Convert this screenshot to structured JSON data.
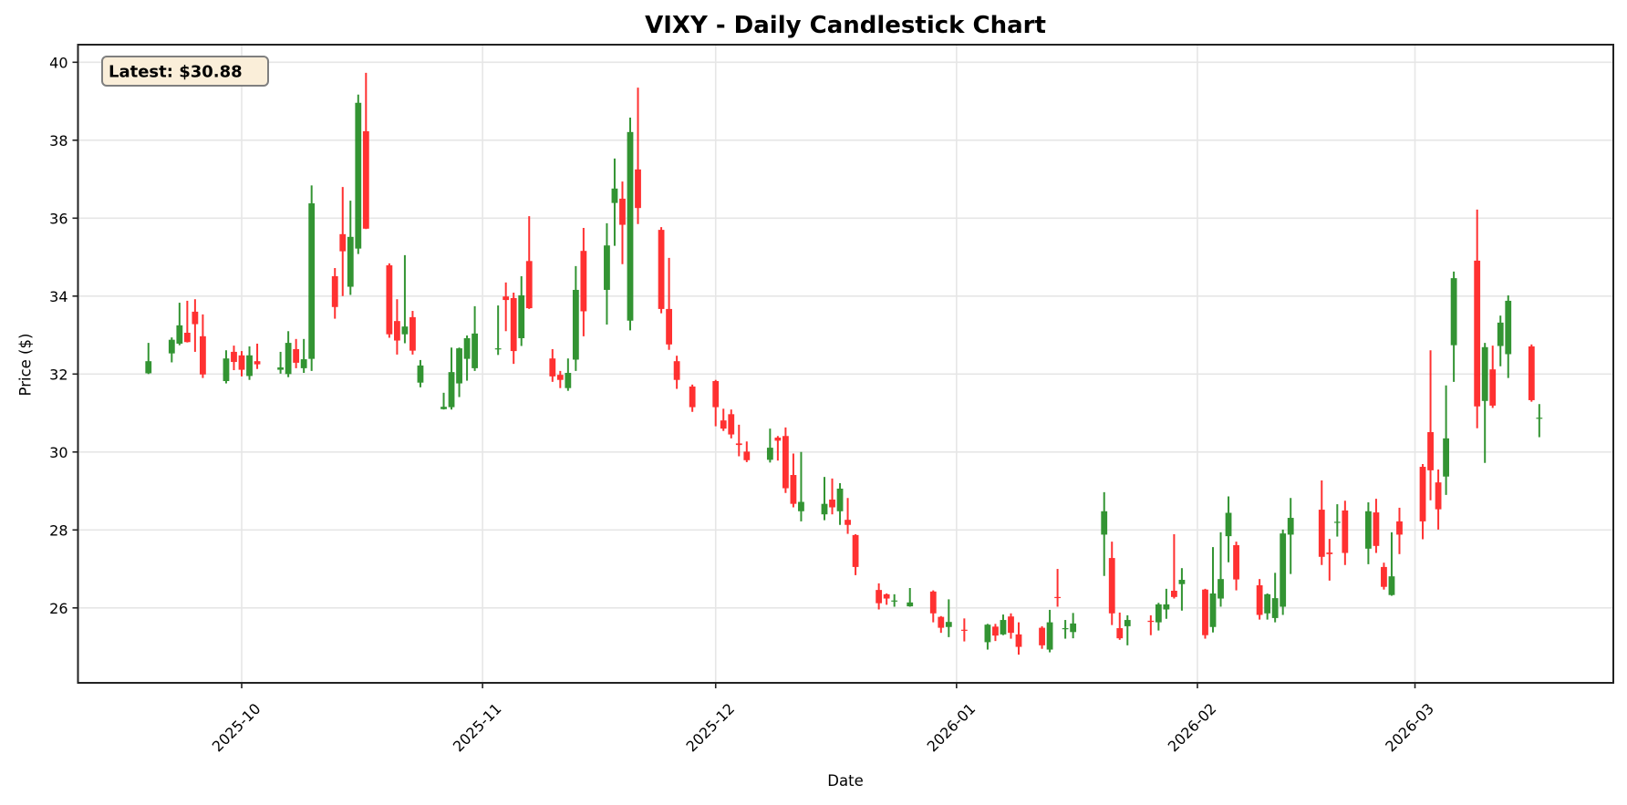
{
  "chart_data": {
    "type": "candlestick",
    "title": "VIXY - Daily Candlestick Chart",
    "xlabel": "Date",
    "ylabel": "Price ($)",
    "ylim": [
      24.08,
      40.45
    ],
    "xlim": [
      "2025-09-16",
      "2026-03-26"
    ],
    "yticks": [
      26,
      28,
      30,
      32,
      34,
      36,
      38,
      40
    ],
    "xticks": [
      {
        "date": "2025-10-01",
        "label": "2025-10"
      },
      {
        "date": "2025-11-01",
        "label": "2025-11"
      },
      {
        "date": "2025-12-01",
        "label": "2025-12"
      },
      {
        "date": "2026-01-01",
        "label": "2026-01"
      },
      {
        "date": "2026-02-01",
        "label": "2026-02"
      },
      {
        "date": "2026-03-01",
        "label": "2026-03"
      }
    ],
    "grid": true,
    "annotation": {
      "label": "Latest: $30.88",
      "value": 30.88
    },
    "colors": {
      "up": "#228B22",
      "down": "#FF2020",
      "grid": "#e6e6e6",
      "axis": "#222222",
      "annotation_bg": "#FAEED9",
      "annotation_border": "#7f7f7f"
    },
    "columns": [
      "date",
      "open",
      "high",
      "low",
      "close"
    ],
    "candles": [
      [
        "2025-09-19",
        32.02,
        32.8,
        32.0,
        32.33
      ],
      [
        "2025-09-22",
        32.53,
        32.94,
        32.3,
        32.88
      ],
      [
        "2025-09-23",
        32.78,
        33.83,
        32.74,
        33.25
      ],
      [
        "2025-09-24",
        33.06,
        33.88,
        32.81,
        32.82
      ],
      [
        "2025-09-25",
        33.6,
        33.92,
        32.57,
        33.28
      ],
      [
        "2025-09-26",
        32.97,
        33.53,
        31.9,
        31.99
      ],
      [
        "2025-09-29",
        31.82,
        32.61,
        31.76,
        32.4
      ],
      [
        "2025-09-30",
        32.57,
        32.73,
        32.1,
        32.31
      ],
      [
        "2025-10-01",
        32.48,
        32.59,
        31.94,
        32.11
      ],
      [
        "2025-10-02",
        31.95,
        32.71,
        31.85,
        32.48
      ],
      [
        "2025-10-03",
        32.33,
        32.78,
        32.13,
        32.25
      ],
      [
        "2025-10-06",
        32.11,
        32.57,
        32.01,
        32.17
      ],
      [
        "2025-10-07",
        32.0,
        33.1,
        31.92,
        32.8
      ],
      [
        "2025-10-08",
        32.64,
        32.9,
        32.15,
        32.29
      ],
      [
        "2025-10-09",
        32.15,
        32.9,
        32.03,
        32.38
      ],
      [
        "2025-10-10",
        32.39,
        36.84,
        32.08,
        36.38
      ],
      [
        "2025-10-13",
        34.51,
        34.72,
        33.42,
        33.72
      ],
      [
        "2025-10-14",
        35.59,
        36.8,
        34.0,
        35.15
      ],
      [
        "2025-10-15",
        34.24,
        36.45,
        34.03,
        35.52
      ],
      [
        "2025-10-16",
        35.22,
        39.17,
        35.08,
        38.96
      ],
      [
        "2025-10-17",
        38.23,
        39.73,
        35.72,
        35.73
      ],
      [
        "2025-10-20",
        34.79,
        34.84,
        32.93,
        33.02
      ],
      [
        "2025-10-21",
        33.36,
        33.92,
        32.5,
        32.86
      ],
      [
        "2025-10-22",
        33.02,
        35.05,
        32.79,
        33.22
      ],
      [
        "2025-10-23",
        33.46,
        33.62,
        32.5,
        32.6
      ],
      [
        "2025-10-24",
        31.78,
        32.36,
        31.66,
        32.22
      ],
      [
        "2025-10-27",
        31.1,
        31.52,
        31.09,
        31.16
      ],
      [
        "2025-10-28",
        31.15,
        32.68,
        31.09,
        32.05
      ],
      [
        "2025-10-29",
        31.76,
        32.68,
        31.41,
        32.66
      ],
      [
        "2025-10-30",
        32.39,
        32.99,
        31.83,
        32.92
      ],
      [
        "2025-10-31",
        32.15,
        33.74,
        32.08,
        33.04
      ],
      [
        "2025-11-03",
        32.64,
        33.76,
        32.49,
        32.66
      ],
      [
        "2025-11-04",
        33.99,
        34.35,
        33.1,
        33.9
      ],
      [
        "2025-11-05",
        33.95,
        34.09,
        32.26,
        32.59
      ],
      [
        "2025-11-06",
        32.92,
        34.51,
        32.72,
        34.02
      ],
      [
        "2025-11-07",
        34.9,
        36.05,
        33.67,
        33.69
      ],
      [
        "2025-11-10",
        32.4,
        32.64,
        31.8,
        31.94
      ],
      [
        "2025-11-11",
        31.98,
        32.08,
        31.64,
        31.85
      ],
      [
        "2025-11-12",
        31.64,
        32.4,
        31.57,
        32.03
      ],
      [
        "2025-11-13",
        32.37,
        34.77,
        32.08,
        34.16
      ],
      [
        "2025-11-14",
        35.16,
        35.75,
        32.97,
        33.61
      ],
      [
        "2025-11-17",
        34.16,
        35.87,
        33.27,
        35.3
      ],
      [
        "2025-11-18",
        36.39,
        37.53,
        35.29,
        36.76
      ],
      [
        "2025-11-19",
        36.5,
        36.94,
        34.82,
        35.83
      ],
      [
        "2025-11-20",
        33.37,
        38.58,
        33.12,
        38.21
      ],
      [
        "2025-11-21",
        37.25,
        39.35,
        35.85,
        36.26
      ],
      [
        "2025-11-24",
        35.7,
        35.77,
        33.56,
        33.67
      ],
      [
        "2025-11-25",
        33.67,
        34.98,
        32.62,
        32.76
      ],
      [
        "2025-11-26",
        32.33,
        32.47,
        31.62,
        31.85
      ],
      [
        "2025-11-28",
        31.68,
        31.73,
        31.03,
        31.15
      ],
      [
        "2025-12-01",
        31.82,
        31.85,
        30.66,
        31.15
      ],
      [
        "2025-12-02",
        30.81,
        31.11,
        30.54,
        30.6
      ],
      [
        "2025-12-03",
        30.97,
        31.09,
        30.35,
        30.45
      ],
      [
        "2025-12-04",
        30.22,
        30.7,
        29.89,
        30.18
      ],
      [
        "2025-12-05",
        30.01,
        30.27,
        29.74,
        29.79
      ],
      [
        "2025-12-08",
        29.8,
        30.6,
        29.73,
        30.11
      ],
      [
        "2025-12-09",
        30.37,
        30.41,
        29.78,
        30.29
      ],
      [
        "2025-12-10",
        30.41,
        30.63,
        28.95,
        29.07
      ],
      [
        "2025-12-11",
        29.41,
        29.96,
        28.58,
        28.67
      ],
      [
        "2025-12-12",
        28.48,
        30.0,
        28.22,
        28.72
      ],
      [
        "2025-12-15",
        28.4,
        29.36,
        28.25,
        28.67
      ],
      [
        "2025-12-16",
        28.78,
        29.32,
        28.4,
        28.58
      ],
      [
        "2025-12-17",
        28.48,
        29.2,
        28.13,
        29.06
      ],
      [
        "2025-12-18",
        28.26,
        28.82,
        27.9,
        28.13
      ],
      [
        "2025-12-19",
        27.87,
        27.89,
        26.84,
        27.05
      ],
      [
        "2025-12-22",
        26.46,
        26.63,
        25.96,
        26.12
      ],
      [
        "2025-12-23",
        26.35,
        26.37,
        26.08,
        26.24
      ],
      [
        "2025-12-24",
        26.17,
        26.35,
        26.03,
        26.19
      ],
      [
        "2025-12-26",
        26.04,
        26.51,
        26.03,
        26.14
      ],
      [
        "2025-12-29",
        26.42,
        26.45,
        25.63,
        25.86
      ],
      [
        "2025-12-30",
        25.77,
        25.79,
        25.36,
        25.49
      ],
      [
        "2025-12-31",
        25.51,
        26.22,
        25.25,
        25.64
      ],
      [
        "2026-01-02",
        25.44,
        25.73,
        25.14,
        25.43
      ],
      [
        "2026-01-05",
        25.12,
        25.59,
        24.93,
        25.57
      ],
      [
        "2026-01-06",
        25.52,
        25.59,
        25.15,
        25.29
      ],
      [
        "2026-01-07",
        25.32,
        25.83,
        25.3,
        25.69
      ],
      [
        "2026-01-08",
        25.78,
        25.86,
        25.21,
        25.36
      ],
      [
        "2026-01-09",
        25.32,
        25.63,
        24.8,
        25.0
      ],
      [
        "2026-01-12",
        25.49,
        25.53,
        24.95,
        25.04
      ],
      [
        "2026-01-13",
        24.93,
        25.95,
        24.86,
        25.63
      ],
      [
        "2026-01-14",
        26.28,
        27.0,
        26.03,
        26.26
      ],
      [
        "2026-01-15",
        25.46,
        25.69,
        25.21,
        25.48
      ],
      [
        "2026-01-16",
        25.38,
        25.87,
        25.22,
        25.6
      ],
      [
        "2026-01-20",
        27.88,
        28.97,
        26.82,
        28.48
      ],
      [
        "2026-01-21",
        27.28,
        27.7,
        25.56,
        25.86
      ],
      [
        "2026-01-22",
        25.48,
        25.88,
        25.18,
        25.22
      ],
      [
        "2026-01-23",
        25.53,
        25.81,
        25.04,
        25.69
      ],
      [
        "2026-01-26",
        25.67,
        25.81,
        25.3,
        25.64
      ],
      [
        "2026-01-27",
        25.63,
        26.13,
        25.42,
        26.09
      ],
      [
        "2026-01-28",
        25.96,
        26.49,
        25.72,
        26.09
      ],
      [
        "2026-01-29",
        26.44,
        27.89,
        26.24,
        26.28
      ],
      [
        "2026-01-30",
        26.61,
        27.02,
        25.93,
        26.72
      ],
      [
        "2026-02-02",
        26.47,
        26.49,
        25.21,
        25.3
      ],
      [
        "2026-02-03",
        25.51,
        27.56,
        25.37,
        26.37
      ],
      [
        "2026-02-04",
        26.24,
        27.94,
        26.03,
        26.74
      ],
      [
        "2026-02-05",
        27.84,
        28.86,
        27.17,
        28.44
      ],
      [
        "2026-02-06",
        27.61,
        27.7,
        26.45,
        26.73
      ],
      [
        "2026-02-09",
        26.58,
        26.74,
        25.7,
        25.82
      ],
      [
        "2026-02-10",
        25.86,
        26.37,
        25.7,
        26.35
      ],
      [
        "2026-02-11",
        25.74,
        26.9,
        25.63,
        26.25
      ],
      [
        "2026-02-12",
        26.03,
        28.01,
        25.82,
        27.91
      ],
      [
        "2026-02-13",
        27.88,
        28.82,
        26.87,
        28.31
      ],
      [
        "2026-02-17",
        28.52,
        29.27,
        27.1,
        27.31
      ],
      [
        "2026-02-18",
        27.42,
        27.77,
        26.7,
        27.38
      ],
      [
        "2026-02-19",
        28.2,
        28.66,
        27.83,
        28.21
      ],
      [
        "2026-02-20",
        28.5,
        28.75,
        27.1,
        27.41
      ],
      [
        "2026-02-23",
        27.52,
        28.71,
        27.12,
        28.48
      ],
      [
        "2026-02-24",
        28.45,
        28.8,
        27.41,
        27.59
      ],
      [
        "2026-02-25",
        27.05,
        27.16,
        26.47,
        26.54
      ],
      [
        "2026-02-26",
        26.33,
        27.94,
        26.31,
        26.81
      ],
      [
        "2026-02-27",
        28.22,
        28.57,
        27.38,
        27.88
      ],
      [
        "2026-03-02",
        29.62,
        29.69,
        27.76,
        28.22
      ],
      [
        "2026-03-03",
        30.51,
        32.61,
        28.76,
        29.53
      ],
      [
        "2026-03-04",
        29.22,
        29.55,
        28.01,
        28.53
      ],
      [
        "2026-03-05",
        29.37,
        31.71,
        28.9,
        30.35
      ],
      [
        "2026-03-06",
        32.74,
        34.63,
        31.8,
        34.46
      ],
      [
        "2026-03-09",
        34.91,
        36.22,
        30.61,
        31.17
      ],
      [
        "2026-03-10",
        31.31,
        32.8,
        29.72,
        32.69
      ],
      [
        "2026-03-11",
        32.12,
        32.73,
        31.13,
        31.19
      ],
      [
        "2026-03-12",
        32.72,
        33.5,
        32.2,
        33.32
      ],
      [
        "2026-03-13",
        32.51,
        34.02,
        31.9,
        33.88
      ],
      [
        "2026-03-16",
        32.71,
        32.76,
        31.29,
        31.33
      ],
      [
        "2026-03-17",
        30.87,
        31.23,
        30.38,
        30.88
      ]
    ]
  }
}
